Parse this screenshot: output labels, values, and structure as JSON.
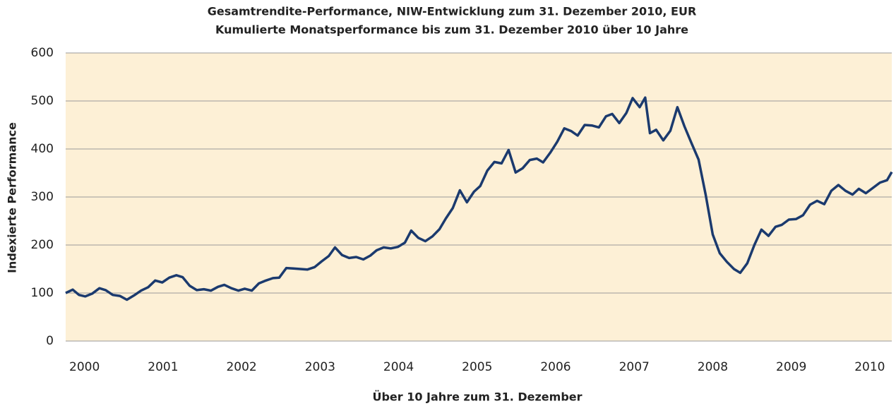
{
  "chart_data": {
    "type": "line",
    "title": "Gesamtrendite-Performance, NIW-Entwicklung zum 31. Dezember 2010, EUR",
    "subtitle": "Kumulierte Monatsperformance bis zum 31. Dezember 2010 über 10 Jahre",
    "x_label": "Über 10 Jahre zum 31. Dezember",
    "y_label": "Indexierte Performance",
    "x": [
      1999.76,
      1999.85,
      1999.93,
      2000.01,
      2000.1,
      2000.19,
      2000.27,
      2000.36,
      2000.45,
      2000.54,
      2000.63,
      2000.72,
      2000.81,
      2000.9,
      2000.99,
      2001.08,
      2001.17,
      2001.25,
      2001.34,
      2001.43,
      2001.52,
      2001.61,
      2001.7,
      2001.78,
      2001.87,
      2001.96,
      2002.04,
      2002.13,
      2002.22,
      2002.31,
      2002.4,
      2002.48,
      2002.57,
      2002.66,
      2002.75,
      2002.84,
      2002.93,
      2003.02,
      2003.11,
      2003.19,
      2003.28,
      2003.37,
      2003.46,
      2003.55,
      2003.64,
      2003.72,
      2003.81,
      2003.9,
      2003.99,
      2004.08,
      2004.16,
      2004.25,
      2004.34,
      2004.43,
      2004.52,
      2004.6,
      2004.69,
      2004.78,
      2004.87,
      2004.96,
      2005.04,
      2005.13,
      2005.22,
      2005.31,
      2005.4,
      2005.49,
      2005.58,
      2005.67,
      2005.76,
      2005.84,
      2005.93,
      2006.02,
      2006.11,
      2006.2,
      2006.28,
      2006.37,
      2006.46,
      2006.55,
      2006.64,
      2006.72,
      2006.81,
      2006.9,
      2006.98,
      2007.07,
      2007.14,
      2007.2,
      2007.28,
      2007.37,
      2007.46,
      2007.55,
      2007.64,
      2007.73,
      2007.82,
      2007.91,
      2008.0,
      2008.09,
      2008.18,
      2008.27,
      2008.35,
      2008.44,
      2008.53,
      2008.62,
      2008.71,
      2008.8,
      2008.88,
      2008.97,
      2009.06,
      2009.15,
      2009.24,
      2009.33,
      2009.42,
      2009.51,
      2009.6,
      2009.69,
      2009.78,
      2009.86,
      2009.95,
      2010.04,
      2010.13,
      2010.22,
      2010.28
    ],
    "series": [
      {
        "color": "#1b3a6e",
        "values": [
          100,
          107,
          96,
          93,
          99,
          110,
          106,
          96,
          94,
          86,
          95,
          105,
          112,
          126,
          122,
          132,
          137,
          133,
          115,
          106,
          108,
          105,
          113,
          117,
          110,
          105,
          109,
          105,
          120,
          126,
          131,
          132,
          152,
          151,
          150,
          149,
          154,
          166,
          177,
          195,
          179,
          173,
          175,
          170,
          178,
          189,
          195,
          193,
          196,
          205,
          230,
          215,
          208,
          218,
          233,
          255,
          277,
          314,
          289,
          311,
          323,
          355,
          373,
          370,
          398,
          351,
          360,
          377,
          380,
          372,
          392,
          415,
          443,
          437,
          428,
          450,
          449,
          445,
          468,
          473,
          454,
          475,
          506,
          487,
          507,
          433,
          440,
          418,
          438,
          487,
          447,
          412,
          378,
          305,
          222,
          183,
          165,
          150,
          142,
          162,
          200,
          232,
          219,
          238,
          242,
          253,
          254,
          262,
          284,
          292,
          285,
          313,
          325,
          313,
          305,
          317,
          308,
          319,
          330,
          335,
          352
        ]
      }
    ],
    "xlim": [
      1999.76,
      2010.28
    ],
    "xticks": [
      2000,
      2001,
      2002,
      2003,
      2004,
      2005,
      2006,
      2007,
      2008,
      2009,
      2010
    ],
    "ylim": [
      0,
      600
    ],
    "yticks": [
      0,
      100,
      200,
      300,
      400,
      500,
      600
    ],
    "grid": true,
    "background": "#fdf0d6"
  }
}
